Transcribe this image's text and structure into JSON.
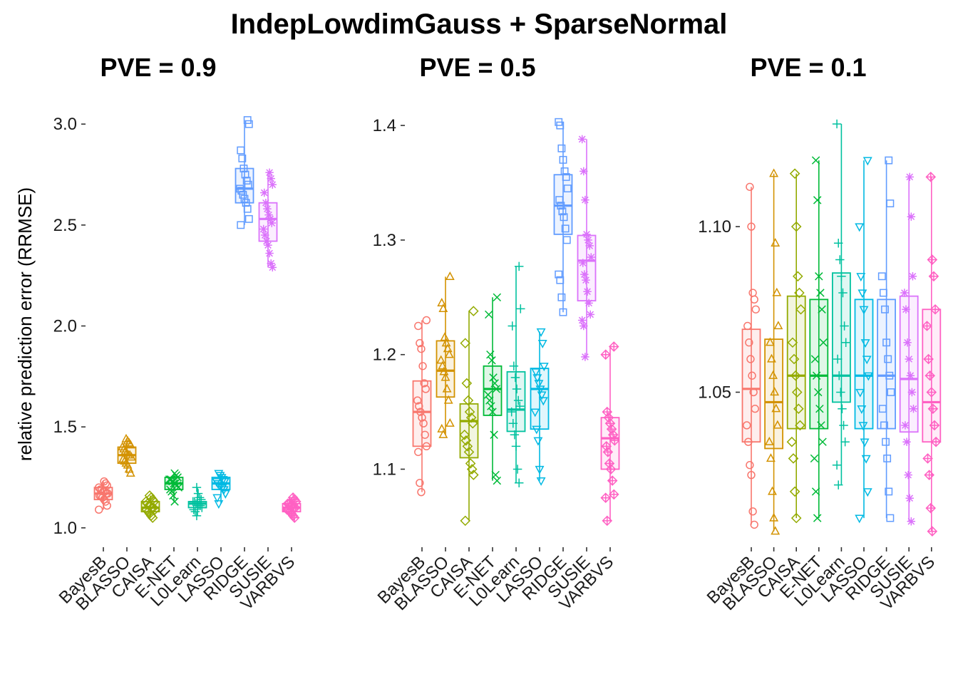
{
  "main_title": "IndepLowdimGauss + SparseNormal",
  "y_axis_title": "relative prediction error (RRMSE)",
  "method_colors": {
    "BayesB": "#F8766D",
    "BLASSO": "#D39200",
    "CAISA": "#93AA00",
    "E-NET": "#00BA38",
    "L0Learn": "#00C19F",
    "LASSO": "#00B9E3",
    "RIDGE": "#619CFF",
    "SUSIE": "#DB72FB",
    "VARBVS": "#FF61C3"
  },
  "method_shapes": {
    "BayesB": "circle",
    "BLASSO": "triangle",
    "CAISA": "diamond",
    "E-NET": "x",
    "L0Learn": "plus",
    "LASSO": "triangle-down",
    "RIDGE": "square",
    "SUSIE": "asterisk",
    "VARBVS": "diamond-plus"
  },
  "chart_data": [
    {
      "type": "box",
      "title": "PVE = 0.9",
      "ylabel": "relative prediction error (RRMSE)",
      "ylim": [
        0.95,
        3.05
      ],
      "yticks": [
        1.0,
        1.5,
        2.0,
        2.5,
        3.0
      ],
      "ytick_labels": [
        "1.0",
        "1.5",
        "2.0",
        "2.5",
        "3.0"
      ],
      "categories": [
        "BayesB",
        "BLASSO",
        "CAISA",
        "E-NET",
        "L0Learn",
        "LASSO",
        "RIDGE",
        "SUSIE",
        "VARBVS"
      ],
      "boxes": [
        {
          "name": "BayesB",
          "min": 1.09,
          "q1": 1.14,
          "median": 1.17,
          "q3": 1.2,
          "max": 1.23
        },
        {
          "name": "BLASSO",
          "min": 1.27,
          "q1": 1.32,
          "median": 1.36,
          "q3": 1.4,
          "max": 1.44
        },
        {
          "name": "CAISA",
          "min": 1.05,
          "q1": 1.08,
          "median": 1.1,
          "q3": 1.13,
          "max": 1.16
        },
        {
          "name": "E-NET",
          "min": 1.13,
          "q1": 1.19,
          "median": 1.22,
          "q3": 1.25,
          "max": 1.27
        },
        {
          "name": "L0Learn",
          "min": 1.06,
          "q1": 1.1,
          "median": 1.12,
          "q3": 1.13,
          "max": 1.2
        },
        {
          "name": "LASSO",
          "min": 1.12,
          "q1": 1.19,
          "median": 1.22,
          "q3": 1.25,
          "max": 1.27
        },
        {
          "name": "RIDGE",
          "min": 2.5,
          "q1": 2.61,
          "median": 2.68,
          "q3": 2.78,
          "max": 3.02
        },
        {
          "name": "SUSIE",
          "min": 2.29,
          "q1": 2.42,
          "median": 2.53,
          "q3": 2.61,
          "max": 2.76
        },
        {
          "name": "VARBVS",
          "min": 1.05,
          "q1": 1.08,
          "median": 1.1,
          "q3": 1.12,
          "max": 1.15
        }
      ],
      "points": [
        [
          1.09,
          1.11,
          1.13,
          1.14,
          1.15,
          1.16,
          1.16,
          1.17,
          1.17,
          1.18,
          1.18,
          1.19,
          1.19,
          1.2,
          1.21,
          1.22,
          1.23
        ],
        [
          1.27,
          1.29,
          1.31,
          1.32,
          1.33,
          1.34,
          1.35,
          1.36,
          1.36,
          1.37,
          1.38,
          1.39,
          1.4,
          1.41,
          1.42,
          1.43,
          1.44
        ],
        [
          1.05,
          1.06,
          1.07,
          1.08,
          1.09,
          1.09,
          1.1,
          1.1,
          1.11,
          1.11,
          1.12,
          1.13,
          1.13,
          1.14,
          1.15,
          1.16
        ],
        [
          1.13,
          1.16,
          1.18,
          1.19,
          1.2,
          1.21,
          1.22,
          1.22,
          1.23,
          1.24,
          1.24,
          1.25,
          1.26,
          1.27
        ],
        [
          1.06,
          1.08,
          1.09,
          1.1,
          1.11,
          1.11,
          1.12,
          1.12,
          1.13,
          1.13,
          1.14,
          1.15,
          1.17,
          1.2
        ],
        [
          1.12,
          1.15,
          1.17,
          1.19,
          1.2,
          1.21,
          1.21,
          1.22,
          1.23,
          1.23,
          1.24,
          1.25,
          1.26,
          1.27
        ],
        [
          2.5,
          2.53,
          2.58,
          2.61,
          2.63,
          2.65,
          2.67,
          2.68,
          2.7,
          2.72,
          2.75,
          2.78,
          2.83,
          2.87,
          3.0,
          3.02
        ],
        [
          2.29,
          2.31,
          2.36,
          2.4,
          2.42,
          2.45,
          2.48,
          2.51,
          2.53,
          2.55,
          2.58,
          2.61,
          2.66,
          2.7,
          2.73,
          2.76
        ],
        [
          1.05,
          1.06,
          1.07,
          1.08,
          1.09,
          1.09,
          1.1,
          1.1,
          1.11,
          1.11,
          1.12,
          1.12,
          1.13,
          1.14,
          1.15
        ]
      ]
    },
    {
      "type": "box",
      "title": "PVE = 0.5",
      "ylim": [
        1.04,
        1.41
      ],
      "yticks": [
        1.1,
        1.2,
        1.3,
        1.4
      ],
      "ytick_labels": [
        "1.1",
        "1.2",
        "1.3",
        "1.4"
      ],
      "categories": [
        "BayesB",
        "BLASSO",
        "CAISA",
        "E-NET",
        "L0Learn",
        "LASSO",
        "RIDGE",
        "SUSIE",
        "VARBVS"
      ],
      "boxes": [
        {
          "name": "BayesB",
          "min": 1.08,
          "q1": 1.12,
          "median": 1.15,
          "q3": 1.177,
          "max": 1.23
        },
        {
          "name": "BLASSO",
          "min": 1.13,
          "q1": 1.163,
          "median": 1.186,
          "q3": 1.212,
          "max": 1.268
        },
        {
          "name": "CAISA",
          "min": 1.055,
          "q1": 1.11,
          "median": 1.142,
          "q3": 1.157,
          "max": 1.238
        },
        {
          "name": "E-NET",
          "min": 1.09,
          "q1": 1.147,
          "median": 1.17,
          "q3": 1.19,
          "max": 1.25
        },
        {
          "name": "L0Learn",
          "min": 1.088,
          "q1": 1.133,
          "median": 1.152,
          "q3": 1.185,
          "max": 1.277
        },
        {
          "name": "LASSO",
          "min": 1.09,
          "q1": 1.135,
          "median": 1.17,
          "q3": 1.188,
          "max": 1.22
        },
        {
          "name": "RIDGE",
          "min": 1.237,
          "q1": 1.305,
          "median": 1.33,
          "q3": 1.357,
          "max": 1.403
        },
        {
          "name": "SUSIE",
          "min": 1.198,
          "q1": 1.247,
          "median": 1.282,
          "q3": 1.304,
          "max": 1.388
        },
        {
          "name": "VARBVS",
          "min": 1.055,
          "q1": 1.1,
          "median": 1.127,
          "q3": 1.145,
          "max": 1.207
        }
      ],
      "points": [
        [
          1.08,
          1.088,
          1.115,
          1.12,
          1.13,
          1.14,
          1.145,
          1.15,
          1.155,
          1.16,
          1.17,
          1.175,
          1.19,
          1.205,
          1.21,
          1.225,
          1.23
        ],
        [
          1.13,
          1.135,
          1.14,
          1.16,
          1.17,
          1.18,
          1.185,
          1.19,
          1.195,
          1.2,
          1.205,
          1.21,
          1.215,
          1.24,
          1.245,
          1.268
        ],
        [
          1.055,
          1.095,
          1.1,
          1.105,
          1.115,
          1.12,
          1.125,
          1.13,
          1.14,
          1.145,
          1.15,
          1.16,
          1.175,
          1.21,
          1.238
        ],
        [
          1.09,
          1.095,
          1.13,
          1.15,
          1.155,
          1.16,
          1.165,
          1.17,
          1.175,
          1.18,
          1.195,
          1.2,
          1.235,
          1.25
        ],
        [
          1.088,
          1.1,
          1.12,
          1.13,
          1.14,
          1.15,
          1.155,
          1.16,
          1.17,
          1.18,
          1.19,
          1.225,
          1.24,
          1.277
        ],
        [
          1.09,
          1.1,
          1.125,
          1.135,
          1.15,
          1.16,
          1.165,
          1.17,
          1.175,
          1.18,
          1.185,
          1.19,
          1.21,
          1.22
        ],
        [
          1.237,
          1.25,
          1.265,
          1.27,
          1.3,
          1.31,
          1.32,
          1.325,
          1.33,
          1.335,
          1.345,
          1.355,
          1.36,
          1.37,
          1.38,
          1.4,
          1.403
        ],
        [
          1.198,
          1.225,
          1.23,
          1.235,
          1.245,
          1.255,
          1.265,
          1.27,
          1.28,
          1.285,
          1.295,
          1.3,
          1.305,
          1.335,
          1.36,
          1.388
        ],
        [
          1.055,
          1.075,
          1.078,
          1.09,
          1.1,
          1.105,
          1.115,
          1.12,
          1.125,
          1.13,
          1.135,
          1.14,
          1.145,
          1.15,
          1.2,
          1.207
        ]
      ]
    },
    {
      "type": "box",
      "title": "PVE = 0.1",
      "ylim": [
        1.006,
        1.134
      ],
      "yticks": [
        1.05,
        1.1
      ],
      "ytick_labels": [
        "1.05",
        "1.10"
      ],
      "categories": [
        "BayesB",
        "BLASSO",
        "CAISA",
        "E-NET",
        "L0Learn",
        "LASSO",
        "RIDGE",
        "SUSIE",
        "VARBVS"
      ],
      "boxes": [
        {
          "name": "BayesB",
          "min": 1.01,
          "q1": 1.035,
          "median": 1.051,
          "q3": 1.069,
          "max": 1.112
        },
        {
          "name": "BLASSO",
          "min": 1.008,
          "q1": 1.033,
          "median": 1.047,
          "q3": 1.066,
          "max": 1.116
        },
        {
          "name": "CAISA",
          "min": 1.012,
          "q1": 1.039,
          "median": 1.055,
          "q3": 1.079,
          "max": 1.116
        },
        {
          "name": "E-NET",
          "min": 1.012,
          "q1": 1.039,
          "median": 1.055,
          "q3": 1.078,
          "max": 1.12
        },
        {
          "name": "L0Learn",
          "min": 1.022,
          "q1": 1.047,
          "median": 1.055,
          "q3": 1.086,
          "max": 1.131
        },
        {
          "name": "LASSO",
          "min": 1.012,
          "q1": 1.039,
          "median": 1.055,
          "q3": 1.078,
          "max": 1.12
        },
        {
          "name": "RIDGE",
          "min": 1.012,
          "q1": 1.039,
          "median": 1.055,
          "q3": 1.078,
          "max": 1.12
        },
        {
          "name": "SUSIE",
          "min": 1.011,
          "q1": 1.038,
          "median": 1.054,
          "q3": 1.079,
          "max": 1.115
        },
        {
          "name": "VARBVS",
          "min": 1.008,
          "q1": 1.035,
          "median": 1.047,
          "q3": 1.075,
          "max": 1.115
        }
      ],
      "points": [
        [
          1.01,
          1.014,
          1.025,
          1.028,
          1.035,
          1.04,
          1.045,
          1.05,
          1.055,
          1.06,
          1.065,
          1.07,
          1.075,
          1.078,
          1.08,
          1.1,
          1.112
        ],
        [
          1.008,
          1.012,
          1.02,
          1.03,
          1.035,
          1.04,
          1.045,
          1.05,
          1.055,
          1.06,
          1.065,
          1.07,
          1.08,
          1.095,
          1.116
        ],
        [
          1.012,
          1.02,
          1.03,
          1.035,
          1.04,
          1.045,
          1.05,
          1.055,
          1.06,
          1.065,
          1.075,
          1.08,
          1.085,
          1.1,
          1.116
        ],
        [
          1.012,
          1.02,
          1.03,
          1.035,
          1.04,
          1.045,
          1.05,
          1.055,
          1.06,
          1.065,
          1.075,
          1.08,
          1.085,
          1.108,
          1.12
        ],
        [
          1.022,
          1.028,
          1.035,
          1.04,
          1.045,
          1.05,
          1.055,
          1.06,
          1.065,
          1.07,
          1.08,
          1.085,
          1.09,
          1.095,
          1.131
        ],
        [
          1.012,
          1.02,
          1.03,
          1.035,
          1.04,
          1.045,
          1.05,
          1.055,
          1.06,
          1.065,
          1.075,
          1.08,
          1.085,
          1.1,
          1.12
        ],
        [
          1.012,
          1.02,
          1.03,
          1.035,
          1.04,
          1.045,
          1.05,
          1.055,
          1.06,
          1.065,
          1.075,
          1.08,
          1.085,
          1.107,
          1.12
        ],
        [
          1.011,
          1.018,
          1.025,
          1.035,
          1.04,
          1.045,
          1.05,
          1.055,
          1.06,
          1.065,
          1.075,
          1.08,
          1.085,
          1.103,
          1.115
        ],
        [
          1.008,
          1.015,
          1.025,
          1.03,
          1.035,
          1.04,
          1.045,
          1.05,
          1.055,
          1.06,
          1.07,
          1.075,
          1.085,
          1.09,
          1.115
        ]
      ]
    }
  ]
}
